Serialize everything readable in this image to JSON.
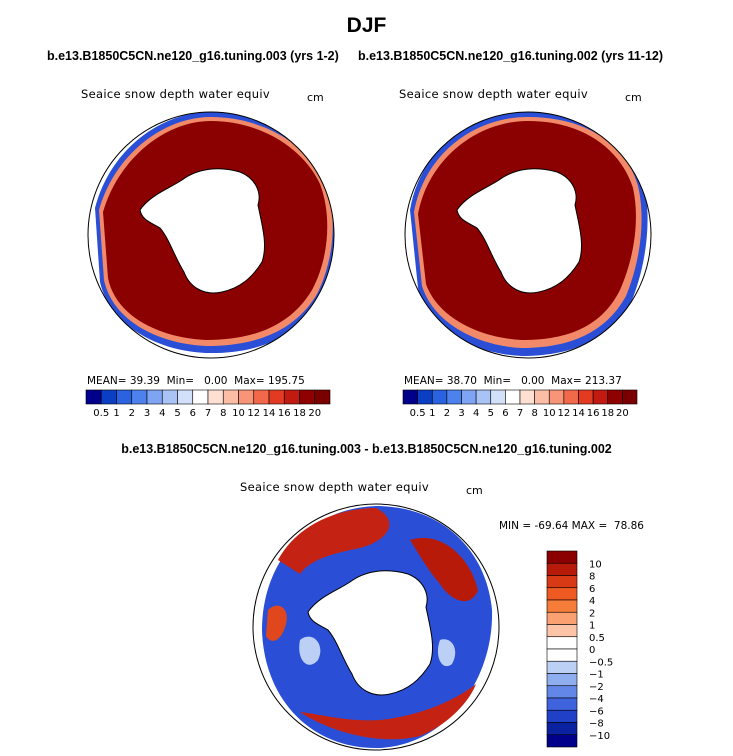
{
  "figure": {
    "season": "DJF",
    "case_left": "b.e13.B1850C5CN.ne120_g16.tuning.003 (yrs 1-2)",
    "case_right": "b.e13.B1850C5CN.ne120_g16.tuning.002 (yrs 11-12)",
    "diff_title": "b.e13.B1850C5CN.ne120_g16.tuning.003 - b.e13.B1850C5CN.ne120_g16.tuning.002"
  },
  "chart_data": [
    {
      "type": "heatmap",
      "projection": "south-polar-stereographic",
      "title": "Seaice snow depth water equiv",
      "units": "cm",
      "stats": {
        "mean_label": "MEAN=",
        "mean": "39.39",
        "min_label": "Min=",
        "min": "0.00",
        "max_label": "Max=",
        "max": "195.75"
      },
      "colorbar_levels": [
        "0.5",
        "1",
        "2",
        "3",
        "4",
        "5",
        "6",
        "7",
        "8",
        "10",
        "12",
        "14",
        "16",
        "18",
        "20"
      ],
      "colorbar_colors": [
        "#00008b",
        "#0a3fc4",
        "#2a62e0",
        "#4d82ee",
        "#7ea4f3",
        "#a9c3f6",
        "#d2e0fa",
        "#ffffff",
        "#fde0d2",
        "#fbbda6",
        "#f89477",
        "#f2684a",
        "#e23b22",
        "#c11a10",
        "#8f0000",
        "#7a0000"
      ]
    },
    {
      "type": "heatmap",
      "projection": "south-polar-stereographic",
      "title": "Seaice snow depth water equiv",
      "units": "cm",
      "stats": {
        "mean_label": "MEAN=",
        "mean": "38.70",
        "min_label": "Min=",
        "min": "0.00",
        "max_label": "Max=",
        "max": "213.37"
      },
      "colorbar_levels": [
        "0.5",
        "1",
        "2",
        "3",
        "4",
        "5",
        "6",
        "7",
        "8",
        "10",
        "12",
        "14",
        "16",
        "18",
        "20"
      ],
      "colorbar_colors": [
        "#00008b",
        "#0a3fc4",
        "#2a62e0",
        "#4d82ee",
        "#7ea4f3",
        "#a9c3f6",
        "#d2e0fa",
        "#ffffff",
        "#fde0d2",
        "#fbbda6",
        "#f89477",
        "#f2684a",
        "#e23b22",
        "#c11a10",
        "#8f0000",
        "#7a0000"
      ]
    },
    {
      "type": "heatmap",
      "projection": "south-polar-stereographic",
      "title": "Seaice snow depth water equiv",
      "units": "cm",
      "range_label": "MIN = -69.64 MAX =  78.86",
      "min": -69.64,
      "max": 78.86,
      "colorbar_levels": [
        "10",
        "8",
        "6",
        "4",
        "2",
        "1",
        "0.5",
        "0",
        "−0.5",
        "−1",
        "−2",
        "−4",
        "−6",
        "−8",
        "−10"
      ],
      "colorbar_colors": [
        "#8b0000",
        "#b81a0a",
        "#d93a16",
        "#ee5a22",
        "#f67c3a",
        "#fba070",
        "#fdc4a8",
        "#ffffff",
        "#ffffff",
        "#bcd0f5",
        "#8eaef0",
        "#6287e8",
        "#3f62dd",
        "#2140c8",
        "#0a22a0",
        "#00008b"
      ]
    }
  ]
}
